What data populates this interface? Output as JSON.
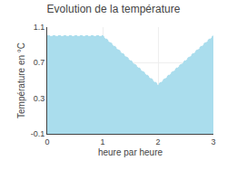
{
  "chart_data": {
    "type": "area",
    "title": "Evolution de la température",
    "xlabel": "heure par heure",
    "ylabel": "Température en °C",
    "x": [
      0,
      1,
      2,
      3
    ],
    "values": [
      1.0,
      1.0,
      0.45,
      1.0
    ],
    "xlim": [
      0,
      3
    ],
    "ylim": [
      -0.1,
      1.1
    ],
    "xticks": [
      0,
      1,
      2,
      3
    ],
    "yticks": [
      -0.1,
      0.3,
      0.7,
      1.1
    ],
    "color": "#aadded",
    "line_style": "dotted",
    "grid": true
  }
}
